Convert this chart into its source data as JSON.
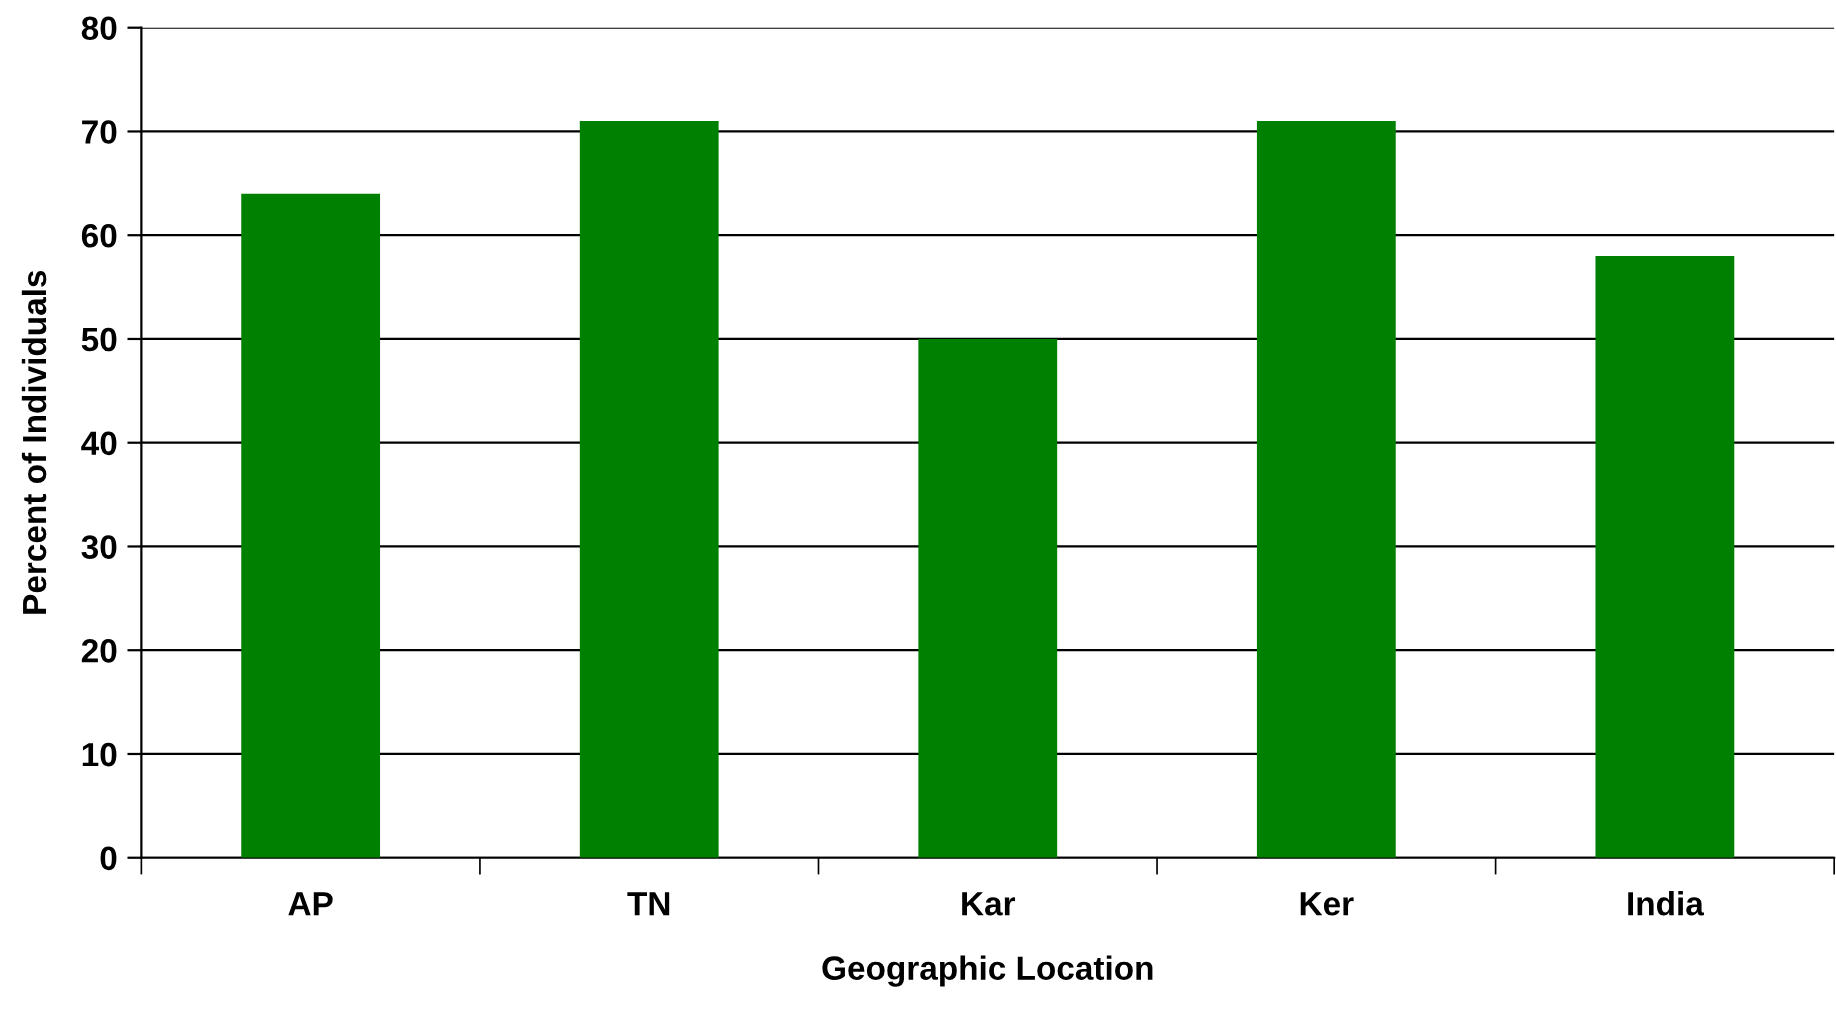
{
  "chart_data": {
    "type": "bar",
    "xlabel": "Geographic Location",
    "ylabel": "Percent of Individuals",
    "categories": [
      "AP",
      "TN",
      "Kar",
      "Ker",
      "India"
    ],
    "values": [
      64,
      71,
      50,
      71,
      58
    ],
    "color": "#008000",
    "ylim": [
      0,
      80
    ],
    "yticks": [
      0,
      10,
      20,
      30,
      40,
      50,
      60,
      70,
      80
    ],
    "grid": "y",
    "legend": false
  }
}
